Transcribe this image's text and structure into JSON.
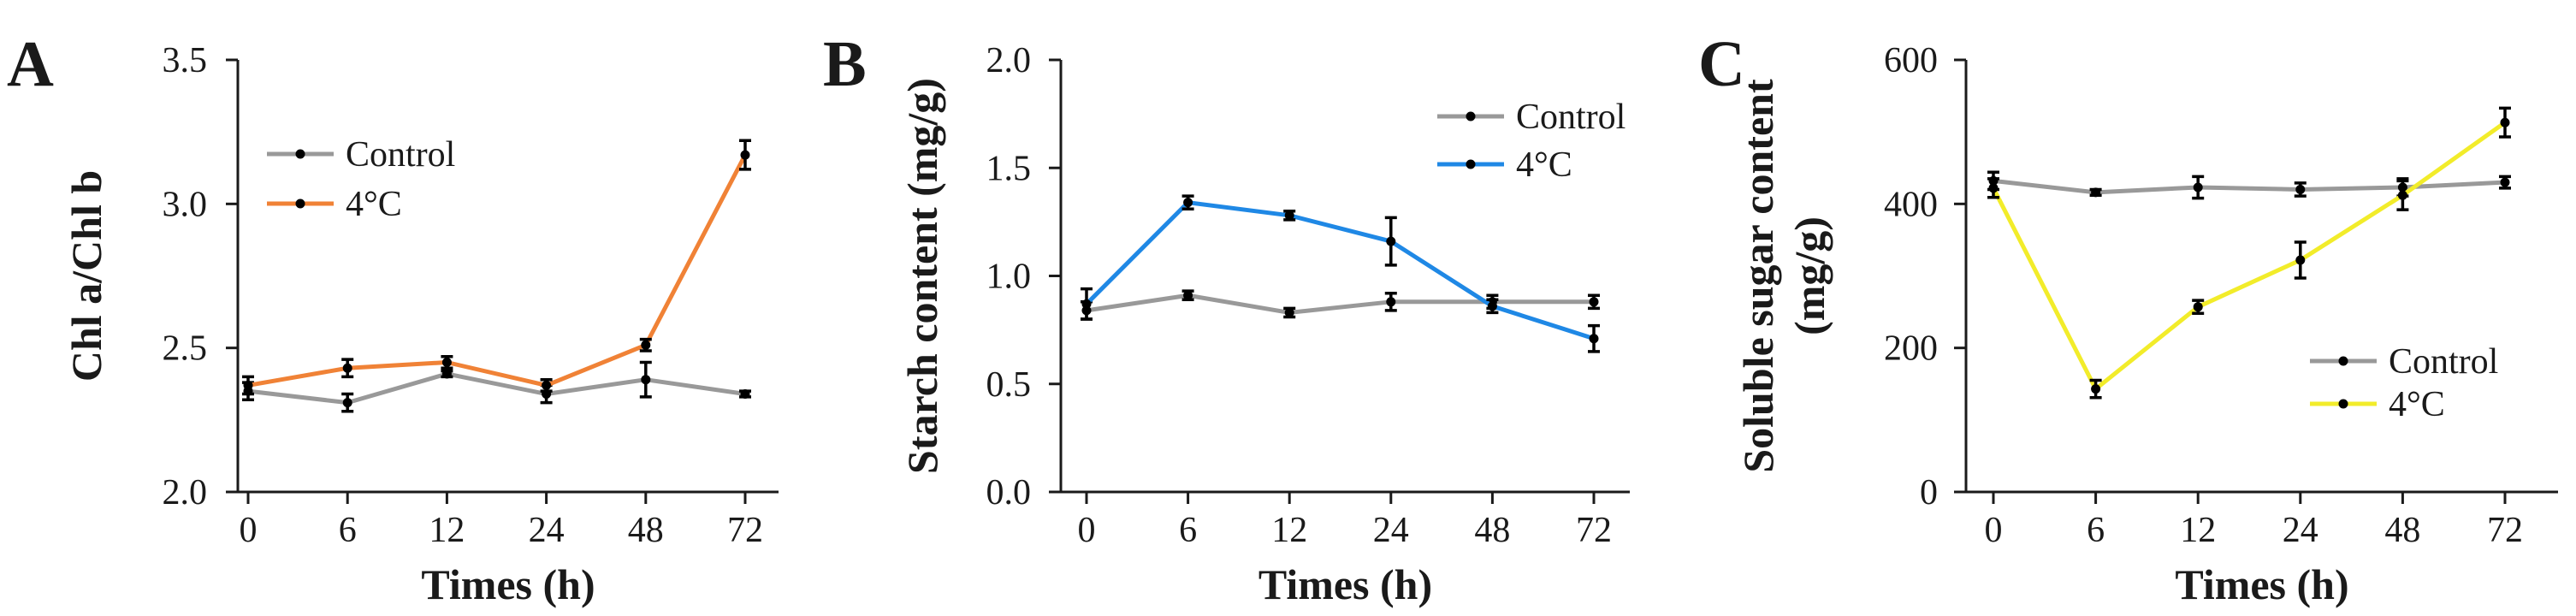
{
  "figure": {
    "panels": [
      "A",
      "B",
      "C"
    ]
  },
  "chart_data": [
    {
      "type": "line",
      "panel": "A",
      "title": "",
      "xlabel": "Times (h)",
      "ylabel": "Chl a/Chl b",
      "categories": [
        "0",
        "6",
        "12",
        "24",
        "48",
        "72"
      ],
      "ylim": [
        2.0,
        3.5
      ],
      "yticks": [
        2.0,
        2.5,
        3.0,
        3.5
      ],
      "ytick_labels": [
        "2.0",
        "2.5",
        "3.0",
        "3.5"
      ],
      "legend_position": "upper-left",
      "series": [
        {
          "name": "Control",
          "color": "#999999",
          "values": [
            2.35,
            2.31,
            2.41,
            2.34,
            2.39,
            2.34
          ],
          "errors": [
            0.03,
            0.03,
            0.01,
            0.03,
            0.06,
            0.01
          ]
        },
        {
          "name": "4°C",
          "color": "#F08236",
          "values": [
            2.37,
            2.43,
            2.45,
            2.37,
            2.51,
            3.17
          ],
          "errors": [
            0.03,
            0.03,
            0.02,
            0.02,
            0.02,
            0.05
          ]
        }
      ]
    },
    {
      "type": "line",
      "panel": "B",
      "title": "",
      "xlabel": "Times (h)",
      "ylabel": "Starch content (mg/g)",
      "categories": [
        "0",
        "6",
        "12",
        "24",
        "48",
        "72"
      ],
      "ylim": [
        0.0,
        2.0
      ],
      "yticks": [
        0.0,
        0.5,
        1.0,
        1.5,
        2.0
      ],
      "ytick_labels": [
        "0.0",
        "0.5",
        "1.0",
        "1.5",
        "2.0"
      ],
      "legend_position": "upper-right",
      "series": [
        {
          "name": "Control",
          "color": "#999999",
          "values": [
            0.84,
            0.91,
            0.83,
            0.88,
            0.88,
            0.88
          ],
          "errors": [
            0.04,
            0.02,
            0.02,
            0.04,
            0.03,
            0.03
          ]
        },
        {
          "name": "4°C",
          "color": "#1F88E5",
          "values": [
            0.87,
            1.34,
            1.28,
            1.16,
            0.86,
            0.71
          ],
          "errors": [
            0.07,
            0.03,
            0.02,
            0.11,
            0.03,
            0.06
          ]
        }
      ]
    },
    {
      "type": "line",
      "panel": "C",
      "title": "",
      "xlabel": "Times (h)",
      "ylabel": [
        "Soluble sugar content",
        "(mg/g)"
      ],
      "categories": [
        "0",
        "6",
        "12",
        "24",
        "48",
        "72"
      ],
      "ylim": [
        0,
        600
      ],
      "yticks": [
        0,
        200,
        400,
        600
      ],
      "ytick_labels": [
        "0",
        "200",
        "400",
        "600"
      ],
      "legend_position": "lower-right",
      "series": [
        {
          "name": "Control",
          "color": "#999999",
          "values": [
            432,
            416,
            423,
            420,
            423,
            430
          ],
          "errors": [
            12,
            4,
            15,
            9,
            12,
            8
          ]
        },
        {
          "name": "4°C",
          "color": "#F2EC2A",
          "values": [
            422,
            143,
            257,
            322,
            412,
            513
          ],
          "errors": [
            13,
            12,
            9,
            25,
            20,
            20
          ]
        }
      ]
    }
  ]
}
